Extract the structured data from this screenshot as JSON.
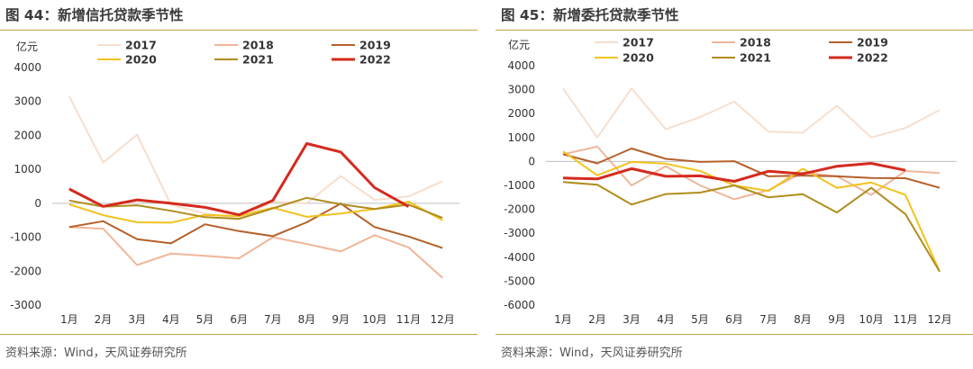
{
  "charts": [
    {
      "figure_title": "图 44：新增信托贷款季节性",
      "source": "资料来源：Wind，天风证券研究所"
    },
    {
      "figure_title": "图 45：新增委托贷款季节性",
      "source": "资料来源：Wind，天风证券研究所"
    }
  ],
  "chart_data": [
    {
      "type": "line",
      "ylabel": "亿元",
      "ylim": [
        -3000,
        4000
      ],
      "yticks": [
        4000,
        3000,
        2000,
        1000,
        0,
        -1000,
        -2000,
        -3000
      ],
      "categories": [
        "1月",
        "2月",
        "3月",
        "4月",
        "5月",
        "6月",
        "7月",
        "8月",
        "9月",
        "10月",
        "11月",
        "12月"
      ],
      "legend_position": "top",
      "series": [
        {
          "name": "2017",
          "color": "#f6dfcf",
          "values": [
            3150,
            1200,
            2020,
            -50,
            -300,
            -450,
            50,
            0,
            800,
            100,
            200,
            650
          ]
        },
        {
          "name": "2018",
          "color": "#f0b698",
          "values": [
            -700,
            -750,
            -1820,
            -1480,
            -1550,
            -1620,
            -1000,
            -1200,
            -1420,
            -940,
            -1300,
            -2200
          ]
        },
        {
          "name": "2019",
          "color": "#b5602a",
          "values": [
            -700,
            -530,
            -1060,
            -1180,
            -620,
            -820,
            -970,
            -560,
            -10,
            -700,
            -980,
            -1320
          ]
        },
        {
          "name": "2020",
          "color": "#f2c31d",
          "values": [
            -30,
            -350,
            -560,
            -570,
            -340,
            -380,
            -130,
            -400,
            -300,
            -170,
            50,
            -500
          ]
        },
        {
          "name": "2021",
          "color": "#b08d1c",
          "values": [
            80,
            -100,
            -60,
            -220,
            -410,
            -460,
            -150,
            160,
            -30,
            -170,
            -40,
            -430
          ]
        },
        {
          "name": "2022",
          "color": "#d52a1e",
          "values": [
            420,
            -90,
            100,
            0,
            -120,
            -340,
            80,
            1760,
            1510,
            460,
            -100,
            null
          ]
        }
      ]
    },
    {
      "type": "line",
      "ylabel": "亿元",
      "ylim": [
        -6000,
        4000
      ],
      "yticks": [
        4000,
        3000,
        2000,
        1000,
        0,
        -1000,
        -2000,
        -3000,
        -4000,
        -5000,
        -6000
      ],
      "categories": [
        "1月",
        "2月",
        "3月",
        "4月",
        "5月",
        "6月",
        "7月",
        "8月",
        "9月",
        "10月",
        "11月",
        "12月"
      ],
      "legend_position": "top",
      "series": [
        {
          "name": "2017",
          "color": "#f6dfcf",
          "values": [
            3050,
            1000,
            3050,
            1350,
            1850,
            2500,
            1250,
            1200,
            2330,
            1000,
            1400,
            2150
          ]
        },
        {
          "name": "2018",
          "color": "#f0b698",
          "values": [
            300,
            620,
            -1000,
            -200,
            -1000,
            -1580,
            -1200,
            -460,
            -620,
            -1400,
            -400,
            -480
          ]
        },
        {
          "name": "2019",
          "color": "#b5602a",
          "values": [
            300,
            -80,
            540,
            110,
            -20,
            10,
            -620,
            -590,
            -620,
            -690,
            -700,
            -1100
          ]
        },
        {
          "name": "2020",
          "color": "#f2c31d",
          "values": [
            420,
            -580,
            -20,
            -90,
            -400,
            -1000,
            -1230,
            -300,
            -1100,
            -880,
            -1400,
            -4600
          ]
        },
        {
          "name": "2021",
          "color": "#b08d1c",
          "values": [
            -860,
            -970,
            -1800,
            -1360,
            -1300,
            -1000,
            -1500,
            -1370,
            -2130,
            -1100,
            -2200,
            -4600
          ]
        },
        {
          "name": "2022",
          "color": "#d52a1e",
          "values": [
            -690,
            -730,
            -300,
            -620,
            -600,
            -830,
            -410,
            -520,
            -200,
            -80,
            -370,
            null
          ]
        }
      ]
    }
  ]
}
